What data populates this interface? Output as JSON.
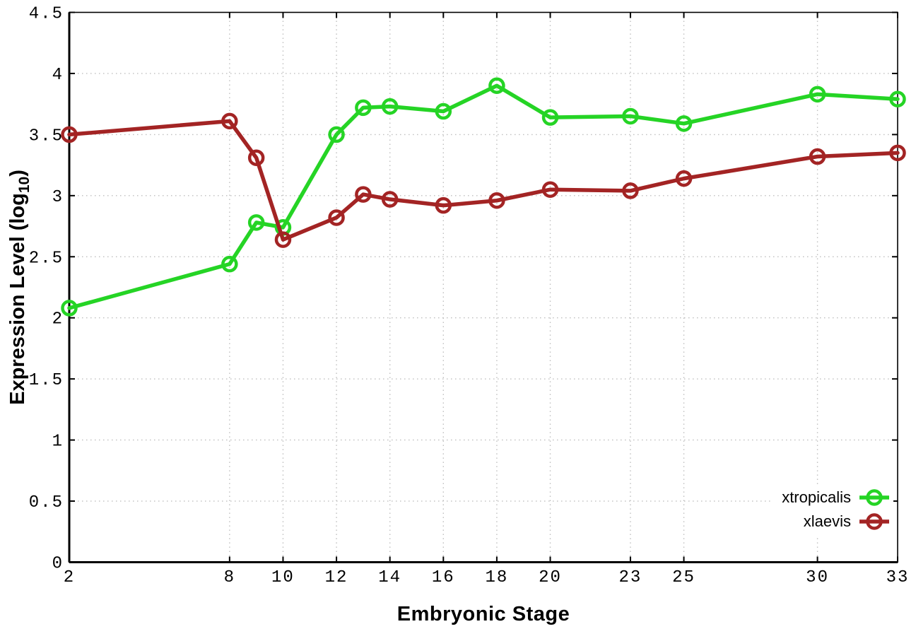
{
  "chart_data": {
    "type": "line",
    "title": "",
    "xlabel": "Embryonic Stage",
    "ylabel": "Expression Level (log10)",
    "ylabel_parts": {
      "prefix": "Expression Level (log",
      "sub": "10",
      "suffix": ")"
    },
    "xlim": [
      2,
      33
    ],
    "ylim": [
      0,
      4.5
    ],
    "grid": true,
    "grid_style": "dotted",
    "legend_position": "bottom-right",
    "marker": "open-circle",
    "xticks": [
      2,
      8,
      10,
      12,
      14,
      16,
      18,
      20,
      23,
      25,
      30,
      33
    ],
    "xtick_labels": [
      "2",
      "8",
      "10",
      "12",
      "14",
      "16",
      "18",
      "20",
      "23",
      "25",
      "30",
      "33"
    ],
    "yticks": [
      0,
      0.5,
      1,
      1.5,
      2,
      2.5,
      3,
      3.5,
      4,
      4.5
    ],
    "ytick_labels": [
      "0",
      "0.5",
      "1",
      "1.5",
      "2",
      "2.5",
      "3",
      "3.5",
      "4",
      "4.5"
    ],
    "x": [
      2,
      8,
      9,
      10,
      12,
      13,
      14,
      16,
      18,
      20,
      23,
      25,
      30,
      33
    ],
    "series": [
      {
        "name": "xtropicalis",
        "color": "#25d425",
        "values": [
          2.08,
          2.44,
          2.78,
          2.74,
          3.5,
          3.72,
          3.73,
          3.69,
          3.9,
          3.64,
          3.65,
          3.59,
          3.83,
          3.79
        ]
      },
      {
        "name": "xlaevis",
        "color": "#a32424",
        "values": [
          3.5,
          3.61,
          3.31,
          2.64,
          2.82,
          3.01,
          2.97,
          2.92,
          2.96,
          3.05,
          3.04,
          3.14,
          3.32,
          3.35
        ]
      }
    ],
    "colors": {
      "background": "#ffffff",
      "axis": "#000000",
      "grid": "#bfbfbf",
      "tick_text": "#000000"
    }
  }
}
